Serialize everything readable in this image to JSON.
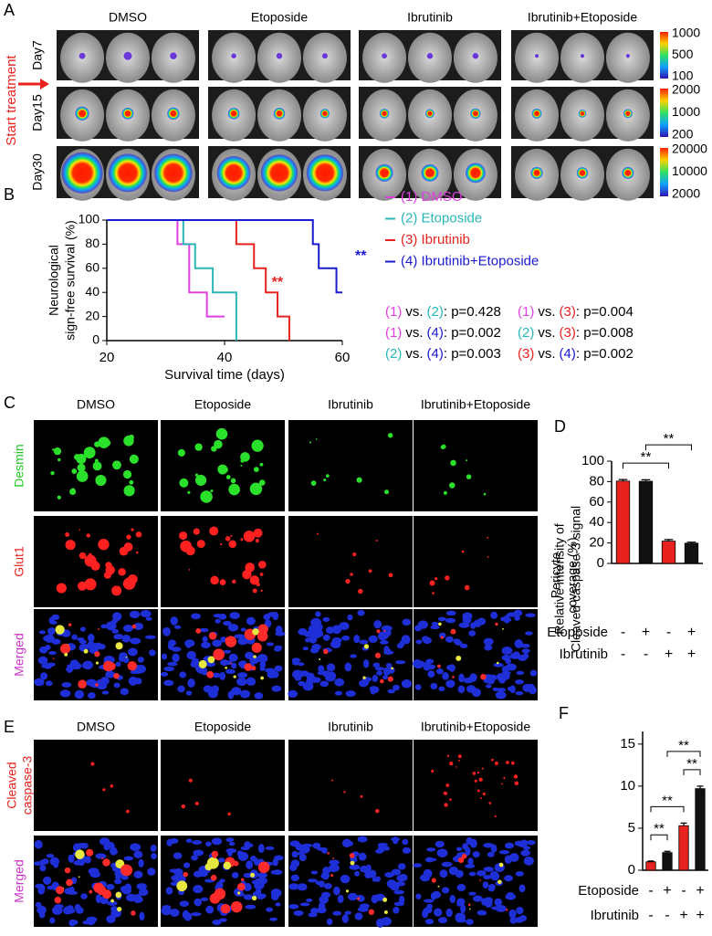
{
  "panel_a": {
    "letter": "A",
    "start_label": "Start treatment",
    "columns": [
      "DMSO",
      "Etoposide",
      "Ibrutinib",
      "Ibrutinib+Etoposide"
    ],
    "rows": [
      {
        "label": "Day7",
        "scale": [
          1000,
          500,
          100
        ]
      },
      {
        "label": "Day15",
        "scale": [
          2000,
          1000,
          200
        ]
      },
      {
        "label": "Day30",
        "scale": [
          20000,
          10000,
          2000
        ]
      }
    ]
  },
  "panel_c": {
    "letter": "C",
    "columns": [
      "DMSO",
      "Etoposide",
      "Ibrutinib",
      "Ibrutinib+Etoposide"
    ],
    "rows": [
      {
        "lines": [
          "Desmin"
        ],
        "color": "#22c922"
      },
      {
        "lines": [
          "Glut1"
        ],
        "color": "#e8231f"
      },
      {
        "lines": [
          "Merged"
        ],
        "color": "#c832c8"
      }
    ]
  },
  "panel_e": {
    "letter": "E",
    "columns": [
      "DMSO",
      "Etoposide",
      "Ibrutinib",
      "Ibrutinib+Etoposide"
    ],
    "rows": [
      {
        "lines": [
          "Cleaved",
          "caspase-3"
        ],
        "color": "#e8231f"
      },
      {
        "lines": [
          "Merged"
        ],
        "color": "#c832c8"
      }
    ]
  },
  "chart_data": [
    {
      "type": "line",
      "letter": "B",
      "x_label": "Survival time (days)",
      "y_label": [
        "Neurological",
        "sign-free survival (%)"
      ],
      "xlim": [
        20,
        60
      ],
      "xticks": [
        20,
        40,
        60
      ],
      "ylim": [
        0,
        100
      ],
      "yticks": [
        0,
        20,
        40,
        60,
        80,
        100
      ],
      "legend_position": "right",
      "series": [
        {
          "name": "(1) DMSO",
          "color": "#e040e0",
          "x": [
            20,
            32,
            32,
            34,
            34,
            37,
            37,
            40
          ],
          "values": [
            100,
            100,
            80,
            80,
            40,
            40,
            20,
            20
          ]
        },
        {
          "name": "(2) Etoposide",
          "color": "#2ab7b7",
          "x": [
            20,
            33,
            33,
            35,
            35,
            38,
            38,
            42,
            42
          ],
          "values": [
            100,
            100,
            80,
            80,
            60,
            60,
            40,
            40,
            0
          ]
        },
        {
          "name": "(3) Ibrutinib",
          "color": "#e8231f",
          "x": [
            20,
            42,
            42,
            45,
            45,
            47,
            47,
            49,
            49,
            51,
            51
          ],
          "values": [
            100,
            100,
            80,
            80,
            60,
            60,
            40,
            40,
            20,
            20,
            0
          ]
        },
        {
          "name": "(4) Ibrutinib+Etoposide",
          "color": "#1a1ad0",
          "x": [
            20,
            55,
            55,
            56,
            56,
            59,
            59,
            60
          ],
          "values": [
            100,
            100,
            80,
            80,
            60,
            60,
            40,
            40
          ]
        }
      ],
      "annotations": [
        {
          "text": "**",
          "color": "#e8231f"
        },
        {
          "text": "**",
          "color": "#1a1ad0"
        }
      ],
      "comparisons": [
        {
          "a": "(1)",
          "a_color": "#e040e0",
          "vs": "vs.",
          "b": "(2)",
          "b_color": "#2ab7b7",
          "p": ": p=0.428"
        },
        {
          "a": "(1)",
          "a_color": "#e040e0",
          "vs": "vs.",
          "b": "(3)",
          "b_color": "#e8231f",
          "p": ": p=0.004"
        },
        {
          "a": "(1)",
          "a_color": "#e040e0",
          "vs": "vs.",
          "b": "(4)",
          "b_color": "#1a1ad0",
          "p": ": p=0.002"
        },
        {
          "a": "(2)",
          "a_color": "#2ab7b7",
          "vs": "vs.",
          "b": "(3)",
          "b_color": "#e8231f",
          "p": ": p=0.008"
        },
        {
          "a": "(2)",
          "a_color": "#2ab7b7",
          "vs": "vs.",
          "b": "(4)",
          "b_color": "#1a1ad0",
          "p": ": p=0.003"
        },
        {
          "a": "(3)",
          "a_color": "#e8231f",
          "vs": "vs.",
          "b": "(4)",
          "b_color": "#1a1ad0",
          "p": ": p=0.002"
        }
      ]
    },
    {
      "type": "bar",
      "letter": "D",
      "y_label": [
        "Pericyte",
        "coverage (%)"
      ],
      "ylim": [
        0,
        100
      ],
      "yticks": [
        0,
        20,
        40,
        60,
        80,
        100
      ],
      "values": [
        80.5,
        80.3,
        21.8,
        19.8
      ],
      "errors": [
        1.5,
        1.5,
        1.5,
        1
      ],
      "colors": [
        "#e8231f",
        "#111111",
        "#e8231f",
        "#111111"
      ],
      "treatments": [
        {
          "name": "Etoposide",
          "signs": [
            "-",
            "+",
            "-",
            "+"
          ]
        },
        {
          "name": "Ibrutinib",
          "signs": [
            "-",
            "-",
            "+",
            "+"
          ]
        }
      ],
      "significance": [
        {
          "text": "**",
          "pair": [
            0,
            2
          ]
        },
        {
          "text": "**",
          "pair": [
            1,
            3
          ]
        }
      ]
    },
    {
      "type": "bar",
      "letter": "F",
      "y_label": [
        "Relative intensity of",
        "Cleaved caspase-3 signal"
      ],
      "ylim": [
        0,
        16.5
      ],
      "yticks": [
        0,
        5,
        10,
        15
      ],
      "values": [
        1,
        2.1,
        5.3,
        9.7
      ],
      "errors": [
        0.1,
        0.15,
        0.3,
        0.3
      ],
      "colors": [
        "#e8231f",
        "#111111",
        "#e8231f",
        "#111111"
      ],
      "treatments": [
        {
          "name": "Etoposide",
          "signs": [
            "-",
            "+",
            "-",
            "+"
          ]
        },
        {
          "name": "Ibrutinib",
          "signs": [
            "-",
            "-",
            "+",
            "+"
          ]
        }
      ],
      "significance": [
        {
          "text": "**",
          "pair": [
            0,
            1
          ]
        },
        {
          "text": "**",
          "pair": [
            0,
            2
          ]
        },
        {
          "text": "**",
          "pair": [
            2,
            3
          ]
        },
        {
          "text": "**",
          "pair": [
            1,
            3
          ]
        }
      ]
    }
  ]
}
